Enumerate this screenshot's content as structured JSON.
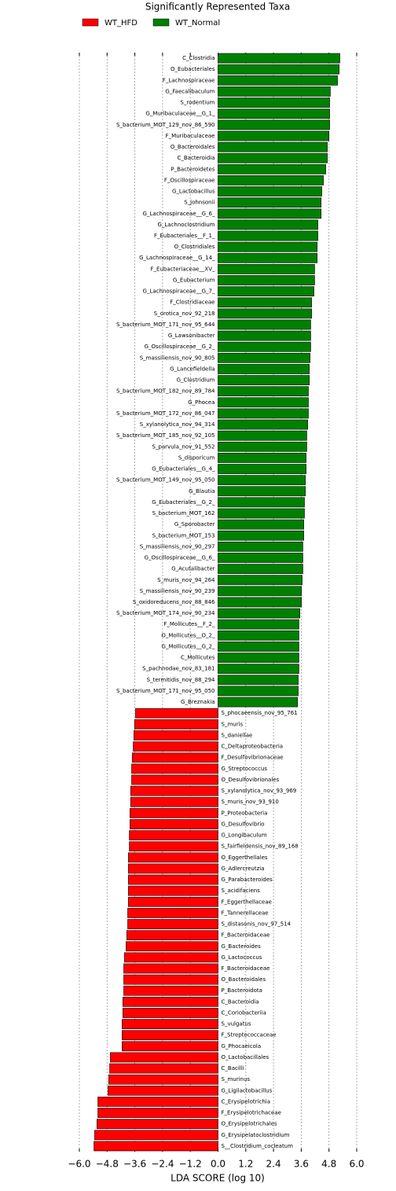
{
  "chart_data": {
    "type": "bar",
    "orientation": "horizontal",
    "title": "Significantly Represented Taxa",
    "x_label": "LDA SCORE (log 10)",
    "xlim": [
      -6.0,
      6.0
    ],
    "xticks": [
      {
        "value": -6.0,
        "label": "−6.0"
      },
      {
        "value": -4.8,
        "label": "−4.8"
      },
      {
        "value": -3.6,
        "label": "−3.6"
      },
      {
        "value": -2.4,
        "label": "−2.4"
      },
      {
        "value": -1.2,
        "label": "−1.2"
      },
      {
        "value": 0,
        "label": "0.0"
      },
      {
        "value": 1.2,
        "label": "1.2"
      },
      {
        "value": 2.4,
        "label": "2.4"
      },
      {
        "value": 3.6,
        "label": "3.6"
      },
      {
        "value": 4.8,
        "label": "4.8"
      },
      {
        "value": 6.0,
        "label": "6.0"
      }
    ],
    "grid": true,
    "series": [
      {
        "name": "WT_HFD",
        "color": "#ff0000",
        "categories": [
          "S_phocaeensis_nov_95_761",
          "S_muris",
          "S_daniellae",
          "C_Deltaproteobacteria",
          "F_Desulfovibrionaceae",
          "G_Streptococcus",
          "O_Desulfovibrionales",
          "S_xylanolytica_nov_93_969",
          "S_muris_nov_93_910",
          "P_Proteobacteria",
          "G_Desulfovibrio",
          "G_Longibaculum",
          "S_fairfieldensis_nov_89_168",
          "O_Eggerthellales",
          "G_Adlercreutzia",
          "G_Parabacteroides",
          "S_acidifaciens",
          "F_Eggerthellaceae",
          "F_Tannerellaceae",
          "S_distasonis_nov_97_514",
          "F_Bacteroidaceae",
          "G_Bacteroides",
          "G_Lactococcus",
          "F_Bacteroidaceae",
          "O_Bacteroidales",
          "P_Bacteroidota",
          "C_Bacteroidia",
          "C_Coriobacteriia",
          "S_vulgatus",
          "F_Streptococcaceae",
          "G_Phocaeicola",
          "O_Lactobacillales",
          "C_Bacilli",
          "S_murinus",
          "G_Ligilactobacillus",
          "C_Erysipelotrichia",
          "F_Erysipelotrichaceae",
          "O_Erysipelotrichales",
          "G_Erysipelatoclostridium",
          "S__Clostridium_cocleatum"
        ],
        "values": [
          -3.57,
          -3.61,
          -3.64,
          -3.67,
          -3.71,
          -3.74,
          -3.74,
          -3.78,
          -3.78,
          -3.81,
          -3.81,
          -3.84,
          -3.84,
          -3.88,
          -3.88,
          -3.88,
          -3.88,
          -3.88,
          -3.91,
          -3.91,
          -3.95,
          -3.98,
          -4.05,
          -4.08,
          -4.08,
          -4.08,
          -4.12,
          -4.12,
          -4.15,
          -4.15,
          -4.15,
          -4.66,
          -4.69,
          -4.73,
          -4.76,
          -5.2,
          -5.2,
          -5.24,
          -5.34,
          -5.37
        ]
      },
      {
        "name": "WT_Normal",
        "color": "#008000",
        "categories": [
          "C_Clostridia",
          "O_Eubacteriales",
          "F_Lachnospiraceae",
          "G_Faecalibaculum",
          "S_rodentium",
          "G_Muribaculaceae__G_1_",
          "S_bacterium_MOT_129_nov_86_590",
          "F_Muribaculaceae",
          "O_Bacteroidales",
          "C_Bacteroidia",
          "P_Bacteroidetes",
          "F_Oscillospiraceae",
          "G_Lactobacillus",
          "S_johnsonii",
          "G_Lachnospiraceae__G_6_",
          "G_Lachnoclostridium",
          "F_Eubacteriales__F_1_",
          "O_Clostridiales",
          "G_Lachnospiraceae__G_14_",
          "F_Eubacteriaceae__XV_",
          "G_Eubacterium",
          "G_Lachnospiraceae__G_7_",
          "F_Clostridiaceae",
          "S_orotica_nov_92_218",
          "S_bacterium_MOT_171_nov_95_644",
          "G_Lawsonibacter",
          "G_Oscillospiraceae__G_2_",
          "S_massiliensis_nov_90_805",
          "G_Lancefieldella",
          "G_Clostridium",
          "S_bacterium_MOT_182_nov_89_784",
          "G_Phocea",
          "S_bacterium_MOT_172_nov_86_047",
          "S_xylanolytica_nov_94_314",
          "S_bacterium_MOT_185_nov_92_105",
          "S_parvula_nov_91_552",
          "S_disporicum",
          "G_Eubacteriales__G_4_",
          "S_bacterium_MOT_149_nov_95_050",
          "G_Blautia",
          "G_Eubacteriales__G_2_",
          "S_bacterium_MOT_162",
          "G_Sporobacter",
          "S_bacterium_MOT_153",
          "S_massiliensis_nov_90_297",
          "G_Oscillospiraceae__G_6_",
          "G_Acutalibacter",
          "S_muris_nov_94_264",
          "S_massiliensis_nov_90_239",
          "S_oxidoreducens_nov_88_846",
          "S_bacterium_MOT_174_nov_90_234",
          "F_Mollicutes__F_2_",
          "O_Mollicutes__O_2_",
          "G_Mollicutes__G_2_",
          "C_Mollicutes",
          "S_pachnodae_nov_83_181",
          "S_termitidis_nov_88_294",
          "S_bacterium_MOT_171_nov_95_050",
          "G_Breznakia"
        ],
        "values": [
          5.27,
          5.24,
          5.17,
          4.86,
          4.83,
          4.83,
          4.83,
          4.8,
          4.73,
          4.73,
          4.66,
          4.56,
          4.49,
          4.46,
          4.46,
          4.32,
          4.32,
          4.29,
          4.29,
          4.18,
          4.18,
          4.15,
          4.05,
          4.05,
          4.01,
          4.01,
          4.01,
          3.98,
          3.95,
          3.95,
          3.91,
          3.91,
          3.91,
          3.88,
          3.84,
          3.84,
          3.81,
          3.81,
          3.78,
          3.78,
          3.74,
          3.74,
          3.71,
          3.71,
          3.67,
          3.67,
          3.67,
          3.64,
          3.61,
          3.61,
          3.54,
          3.5,
          3.5,
          3.5,
          3.5,
          3.5,
          3.47,
          3.47,
          3.44
        ]
      }
    ]
  }
}
